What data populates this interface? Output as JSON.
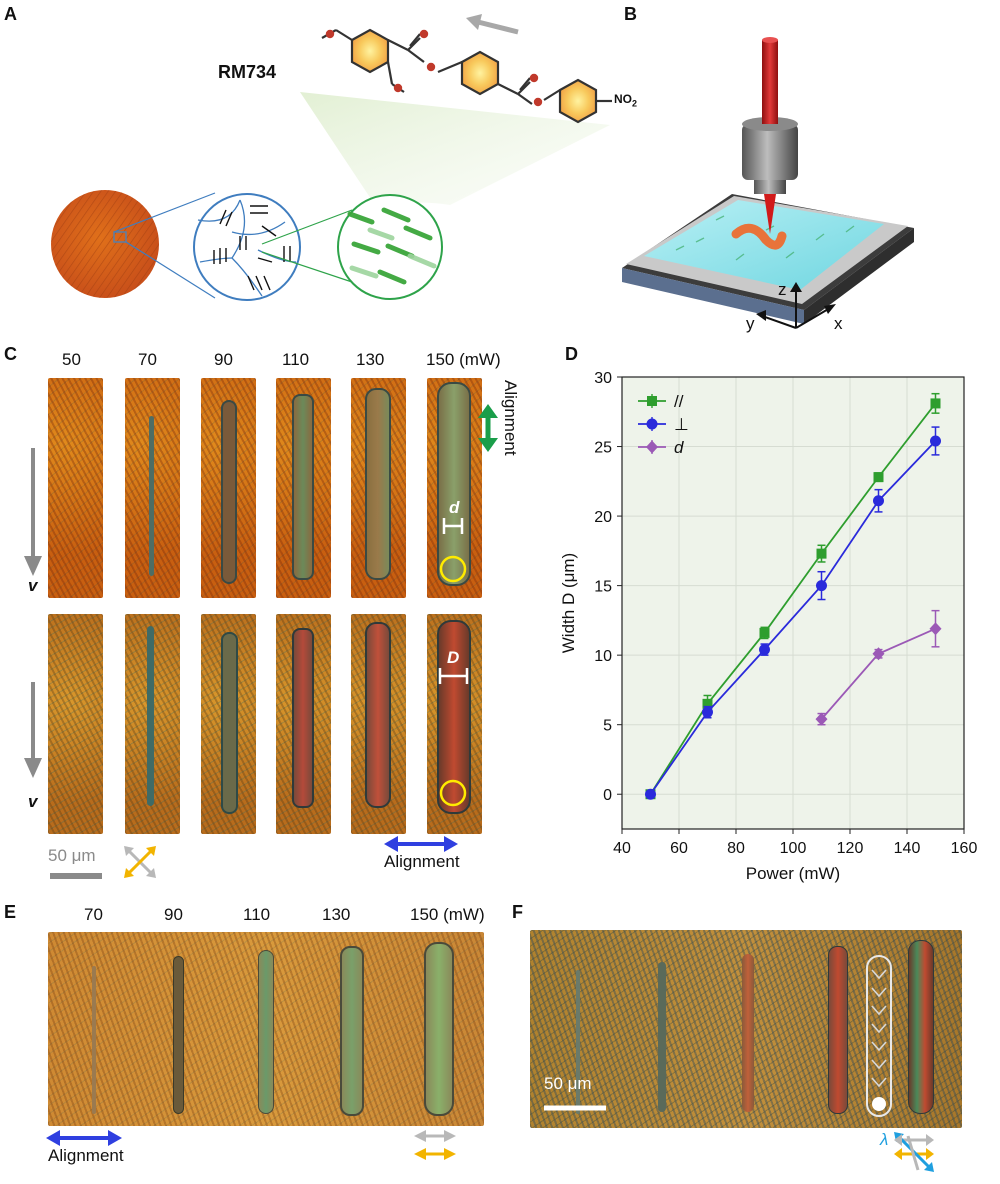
{
  "panels": {
    "a": "A",
    "b": "B",
    "c": "C",
    "d": "D",
    "e": "E",
    "f": "F"
  },
  "panel_a": {
    "molecule_name": "RM734",
    "nitro": "NO",
    "nitro_sub": "2"
  },
  "panel_b": {
    "axis_z": "z",
    "axis_y": "y",
    "axis_x": "x"
  },
  "panel_c": {
    "powers": [
      "50",
      "70",
      "90",
      "110",
      "130",
      "150 (mW)"
    ],
    "alignment_label": "Alignment",
    "velocity_label": "v",
    "small_d": "d",
    "big_d": "D",
    "scale_bar": "50 μm",
    "alignment_bottom": "Alignment",
    "colors": {
      "alignment_green": "#1a9e4a",
      "alignment_blue": "#2f3fe0",
      "polarizer_yellow": "#f2b400",
      "polarizer_gray": "#b8b8b8"
    }
  },
  "chart_data": {
    "type": "line",
    "xlabel": "Power (mW)",
    "ylabel": "Width D (μm)",
    "xlim": [
      40,
      160
    ],
    "ylim": [
      -2.5,
      30
    ],
    "xticks": [
      40,
      60,
      80,
      100,
      120,
      140,
      160
    ],
    "yticks": [
      0,
      5,
      10,
      15,
      20,
      25,
      30
    ],
    "grid": true,
    "legend_position": "top-left",
    "series": [
      {
        "name": "//",
        "marker": "square",
        "color": "#2e9e2e",
        "x": [
          50,
          70,
          90,
          110,
          130,
          150
        ],
        "y": [
          0,
          6.5,
          11.6,
          17.3,
          22.8,
          28.1
        ],
        "err": [
          0.2,
          0.6,
          0.4,
          0.6,
          0.3,
          0.7
        ]
      },
      {
        "name": "⊥",
        "marker": "circle",
        "color": "#2a2adb",
        "x": [
          50,
          70,
          90,
          110,
          130,
          150
        ],
        "y": [
          0,
          5.9,
          10.4,
          15.0,
          21.1,
          25.4
        ],
        "err": [
          0.2,
          0.4,
          0.4,
          1.0,
          0.8,
          1.0
        ]
      },
      {
        "name": "d",
        "marker": "diamond",
        "color": "#9b59b6",
        "x": [
          110,
          130,
          150
        ],
        "y": [
          5.4,
          10.1,
          11.9
        ],
        "err": [
          0.4,
          0.3,
          1.3
        ]
      }
    ]
  },
  "panel_e": {
    "powers": [
      "70",
      "90",
      "110",
      "130",
      "150 (mW)"
    ],
    "alignment_label": "Alignment"
  },
  "panel_f": {
    "scale_bar": "50 μm",
    "lambda": "λ"
  }
}
